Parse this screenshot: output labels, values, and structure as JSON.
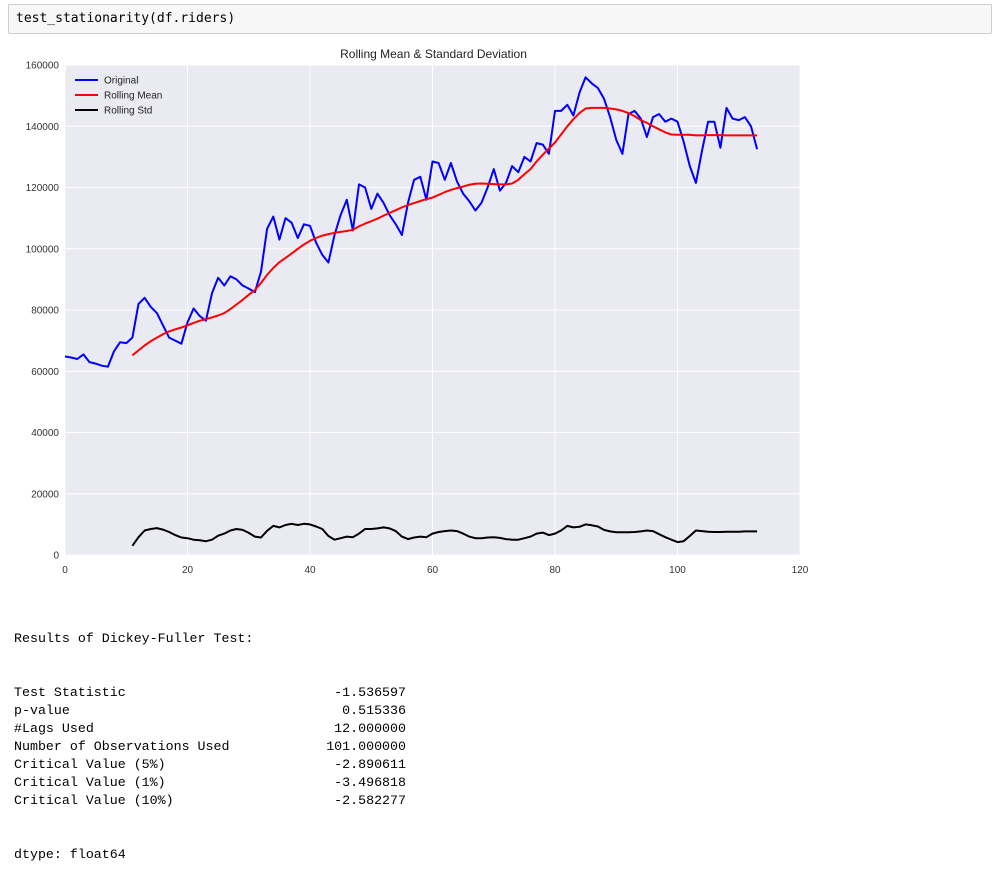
{
  "cell": {
    "code": "test_stationarity(df.riders)"
  },
  "chart_data": {
    "type": "line",
    "title": "Rolling Mean & Standard Deviation",
    "xlabel": "",
    "ylabel": "",
    "xlim": [
      0,
      120
    ],
    "ylim": [
      0,
      160000
    ],
    "xticks": [
      0,
      20,
      40,
      60,
      80,
      100,
      120
    ],
    "yticks": [
      0,
      20000,
      40000,
      60000,
      80000,
      100000,
      120000,
      140000,
      160000
    ],
    "grid": true,
    "legend_position": "top-left",
    "series": [
      {
        "name": "Original",
        "color": "#0000ff",
        "x": [
          0,
          1,
          2,
          3,
          4,
          5,
          6,
          7,
          8,
          9,
          10,
          11,
          12,
          13,
          14,
          15,
          16,
          17,
          18,
          19,
          20,
          21,
          22,
          23,
          24,
          25,
          26,
          27,
          28,
          29,
          30,
          31,
          32,
          33,
          34,
          35,
          36,
          37,
          38,
          39,
          40,
          41,
          42,
          43,
          44,
          45,
          46,
          47,
          48,
          49,
          50,
          51,
          52,
          53,
          54,
          55,
          56,
          57,
          58,
          59,
          60,
          61,
          62,
          63,
          64,
          65,
          66,
          67,
          68,
          69,
          70,
          71,
          72,
          73,
          74,
          75,
          76,
          77,
          78,
          79,
          80,
          81,
          82,
          83,
          84,
          85,
          86,
          87,
          88,
          89,
          90,
          91,
          92,
          93,
          94,
          95,
          96,
          97,
          98,
          99,
          100,
          101,
          102,
          103,
          104,
          105,
          106,
          107,
          108,
          109,
          110,
          111,
          112,
          113
        ],
        "values": [
          64800,
          64500,
          64000,
          65500,
          63000,
          62500,
          61800,
          61500,
          66500,
          69500,
          69200,
          71000,
          82000,
          84000,
          81000,
          79000,
          75000,
          71000,
          70000,
          69000,
          76000,
          80500,
          78000,
          76500,
          85500,
          90500,
          88000,
          91000,
          90000,
          88000,
          87000,
          85800,
          92500,
          106500,
          110500,
          103000,
          110000,
          108500,
          103500,
          108000,
          107500,
          102000,
          98000,
          95500,
          104500,
          111000,
          116000,
          106000,
          121000,
          120000,
          113000,
          118000,
          115000,
          111000,
          108000,
          104500,
          115000,
          122500,
          123500,
          116000,
          128500,
          128000,
          122500,
          128000,
          122000,
          118000,
          115500,
          112500,
          115000,
          120000,
          126000,
          119000,
          121500,
          127000,
          125000,
          130000,
          128500,
          134500,
          134000,
          131000,
          145000,
          145000,
          147000,
          143500,
          151000,
          156000,
          154000,
          152500,
          149000,
          143000,
          135500,
          131000,
          144000,
          145000,
          142500,
          136500,
          143000,
          144000,
          141500,
          142500,
          141500,
          135000,
          127000,
          121500,
          132000,
          141500,
          141500,
          133000,
          146000,
          142500,
          142000,
          143000,
          140000,
          132500
        ]
      },
      {
        "name": "Rolling Mean",
        "color": "#ff0000",
        "x": [
          11,
          12,
          13,
          14,
          15,
          16,
          17,
          18,
          19,
          20,
          21,
          22,
          23,
          24,
          25,
          26,
          27,
          28,
          29,
          30,
          31,
          32,
          33,
          34,
          35,
          36,
          37,
          38,
          39,
          40,
          41,
          42,
          43,
          44,
          45,
          46,
          47,
          48,
          49,
          50,
          51,
          52,
          53,
          54,
          55,
          56,
          57,
          58,
          59,
          60,
          61,
          62,
          63,
          64,
          65,
          66,
          67,
          68,
          69,
          70,
          71,
          72,
          73,
          74,
          75,
          76,
          77,
          78,
          79,
          80,
          81,
          82,
          83,
          84,
          85,
          86,
          87,
          88,
          89,
          90,
          91,
          92,
          93,
          94,
          95,
          96,
          97,
          98,
          99,
          100,
          101,
          102,
          103,
          104,
          105,
          106,
          107,
          108,
          109,
          110,
          111,
          112,
          113
        ],
        "values": [
          65200,
          66800,
          68400,
          69800,
          71000,
          72100,
          73000,
          73700,
          74300,
          75000,
          75800,
          76500,
          77000,
          77600,
          78200,
          79000,
          80300,
          81800,
          83300,
          85000,
          86500,
          88800,
          91500,
          93700,
          95600,
          97000,
          98400,
          100000,
          101400,
          102600,
          103500,
          104300,
          104800,
          105200,
          105500,
          105800,
          106200,
          107300,
          108200,
          109000,
          109800,
          110800,
          111700,
          112600,
          113500,
          114300,
          114900,
          115600,
          116200,
          116700,
          117600,
          118500,
          119200,
          119800,
          120300,
          120900,
          121200,
          121300,
          121200,
          121100,
          121000,
          121000,
          121300,
          122500,
          124300,
          126000,
          128500,
          130700,
          132700,
          134700,
          137300,
          140000,
          142300,
          144300,
          145800,
          146000,
          146000,
          146000,
          145800,
          145500,
          145000,
          144300,
          143300,
          142000,
          141100,
          140000,
          139000,
          138000,
          137300,
          137200,
          137200,
          137200,
          137000,
          137000,
          137100,
          137100,
          137100,
          137000,
          137000,
          137000,
          137000,
          137000,
          137000
        ],
        "values_note_removed": null
      },
      {
        "name": "Rolling Std",
        "color": "#000000",
        "x": [
          11,
          12,
          13,
          14,
          15,
          16,
          17,
          18,
          19,
          20,
          21,
          22,
          23,
          24,
          25,
          26,
          27,
          28,
          29,
          30,
          31,
          32,
          33,
          34,
          35,
          36,
          37,
          38,
          39,
          40,
          41,
          42,
          43,
          44,
          45,
          46,
          47,
          48,
          49,
          50,
          51,
          52,
          53,
          54,
          55,
          56,
          57,
          58,
          59,
          60,
          61,
          62,
          63,
          64,
          65,
          66,
          67,
          68,
          69,
          70,
          71,
          72,
          73,
          74,
          75,
          76,
          77,
          78,
          79,
          80,
          81,
          82,
          83,
          84,
          85,
          86,
          87,
          88,
          89,
          90,
          91,
          92,
          93,
          94,
          95,
          96,
          97,
          98,
          99,
          100,
          101,
          102,
          103,
          104,
          105,
          106,
          107,
          108,
          109,
          110,
          111,
          112,
          113
        ],
        "values": [
          3000,
          5800,
          8000,
          8500,
          8800,
          8300,
          7500,
          6500,
          5700,
          5500,
          5000,
          4800,
          4500,
          5000,
          6300,
          7000,
          8000,
          8500,
          8200,
          7200,
          6000,
          5700,
          7900,
          9500,
          9000,
          9800,
          10200,
          9800,
          10200,
          10000,
          9300,
          8500,
          6200,
          5000,
          5500,
          6000,
          5800,
          7000,
          8500,
          8500,
          8700,
          9000,
          8700,
          7800,
          6000,
          5200,
          5700,
          6000,
          5800,
          7000,
          7500,
          7800,
          8000,
          7800,
          7000,
          6000,
          5500,
          5500,
          5700,
          5800,
          5600,
          5200,
          5000,
          5000,
          5500,
          6000,
          7000,
          7300,
          6500,
          7000,
          8000,
          9500,
          9000,
          9200,
          10000,
          9700,
          9300,
          8200,
          7700,
          7400,
          7400,
          7400,
          7500,
          7700,
          8000,
          7800,
          6800,
          5800,
          5000,
          4200,
          4500,
          6200,
          8000,
          7800,
          7600,
          7500,
          7500,
          7600,
          7600,
          7600,
          7700,
          7700,
          7700
        ],
        "values_note_removed": null
      }
    ]
  },
  "output": {
    "heading": "Results of Dickey-Fuller Test:",
    "rows": [
      {
        "label": "Test Statistic",
        "value": "-1.536597"
      },
      {
        "label": "p-value",
        "value": "0.515336"
      },
      {
        "label": "#Lags Used",
        "value": "12.000000"
      },
      {
        "label": "Number of Observations Used",
        "value": "101.000000"
      },
      {
        "label": "Critical Value (5%)",
        "value": "-2.890611"
      },
      {
        "label": "Critical Value (1%)",
        "value": "-3.496818"
      },
      {
        "label": "Critical Value (10%)",
        "value": "-2.582277"
      }
    ],
    "dtype": "dtype: float64"
  }
}
